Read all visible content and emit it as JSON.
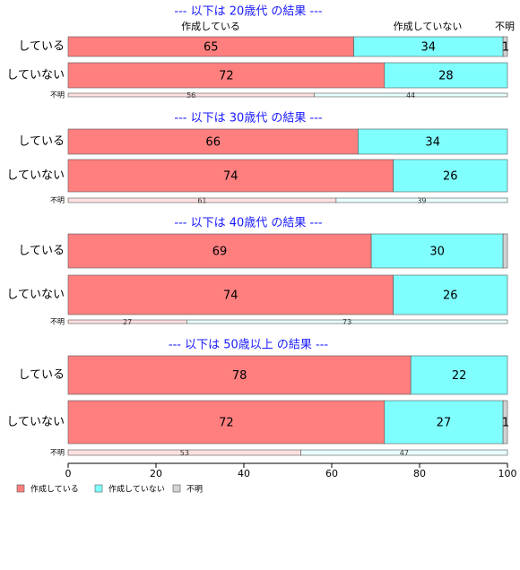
{
  "chart_data": {
    "type": "bar",
    "orientation": "horizontal",
    "stacked": true,
    "xlim": [
      0,
      100
    ],
    "xticks": [
      "0",
      "20",
      "40",
      "60",
      "80",
      "100"
    ],
    "column_headers": [
      "作成している",
      "作成していない",
      "不明"
    ],
    "legend": {
      "placement": "bottom-left",
      "entries": [
        "作成している",
        "作成していない",
        "不明"
      ]
    },
    "colors": {
      "作成している": "#ff7f7f",
      "作成していない": "#80ffff",
      "不明": "#d3d3d3"
    },
    "groups": [
      {
        "title": "--- 以下は 20歳代 の結果 ---",
        "rows": [
          {
            "label": "している",
            "values": [
              65,
              34,
              1
            ],
            "labels": [
              "65",
              "34",
              "1"
            ]
          },
          {
            "label": "していない",
            "values": [
              72,
              28,
              0
            ],
            "labels": [
              "72",
              "28",
              ""
            ]
          },
          {
            "label": "不明",
            "small": true,
            "values": [
              56,
              44,
              0
            ],
            "labels": [
              "56",
              "44",
              ""
            ]
          }
        ]
      },
      {
        "title": "--- 以下は 30歳代 の結果 ---",
        "rows": [
          {
            "label": "している",
            "values": [
              66,
              34,
              0
            ],
            "labels": [
              "66",
              "34",
              ""
            ]
          },
          {
            "label": "していない",
            "values": [
              74,
              26,
              0
            ],
            "labels": [
              "74",
              "26",
              ""
            ]
          },
          {
            "label": "不明",
            "small": true,
            "values": [
              61,
              39,
              0
            ],
            "labels": [
              "61",
              "39",
              ""
            ]
          }
        ]
      },
      {
        "title": "--- 以下は 40歳代 の結果 ---",
        "rows": [
          {
            "label": "している",
            "values": [
              69,
              30,
              1
            ],
            "labels": [
              "69",
              "30",
              ""
            ]
          },
          {
            "label": "していない",
            "values": [
              74,
              26,
              0
            ],
            "labels": [
              "74",
              "26",
              ""
            ]
          },
          {
            "label": "不明",
            "small": true,
            "values": [
              27,
              73,
              0
            ],
            "labels": [
              "27",
              "73",
              ""
            ]
          }
        ]
      },
      {
        "title": "--- 以下は 50歳以上 の結果 ---",
        "rows": [
          {
            "label": "している",
            "values": [
              78,
              22,
              0
            ],
            "labels": [
              "78",
              "22",
              ""
            ]
          },
          {
            "label": "していない",
            "values": [
              72,
              27,
              1
            ],
            "labels": [
              "72",
              "27",
              "1"
            ]
          },
          {
            "label": "不明",
            "small": true,
            "values": [
              53,
              47,
              0
            ],
            "labels": [
              "53",
              "47",
              ""
            ]
          }
        ]
      }
    ]
  }
}
